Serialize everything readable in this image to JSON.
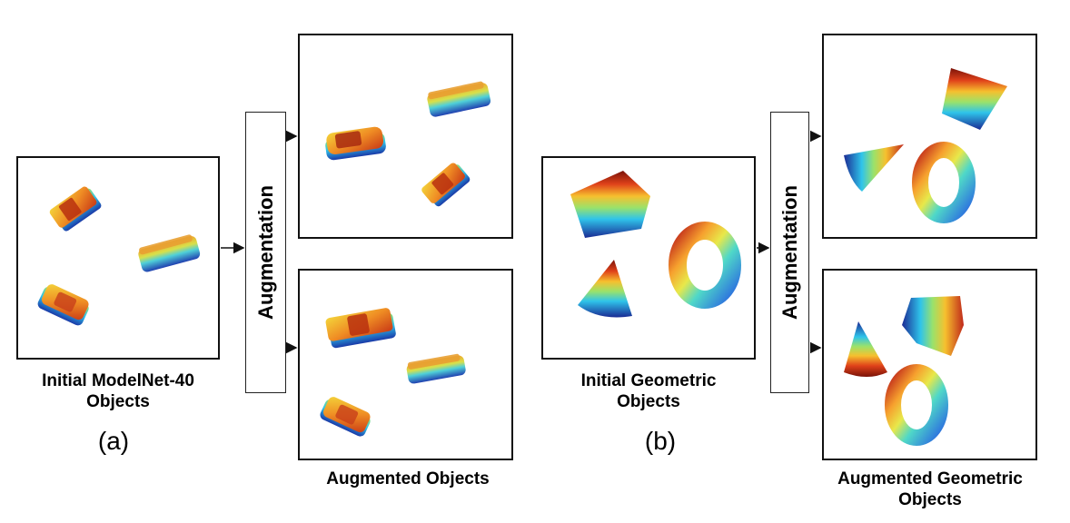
{
  "figure_a": {
    "augmentation_label": "Augmentation",
    "initial_caption_line1": "Initial ModelNet-40",
    "initial_caption_line2": "Objects",
    "augmented_caption": "Augmented Objects",
    "sub_label": "(a)"
  },
  "figure_b": {
    "augmentation_label": "Augmentation",
    "initial_caption_line1": "Initial Geometric",
    "initial_caption_line2": "Objects",
    "augmented_caption_line1": "Augmented Geometric",
    "augmented_caption_line2": "Objects",
    "sub_label": "(b)"
  },
  "colors": {
    "jet_red": "#8b1a0a",
    "jet_orange": "#f08a1c",
    "jet_yellow": "#f4e23a",
    "jet_cyan": "#37c8e6",
    "jet_blue": "#1a2f9c",
    "border": "#111111"
  }
}
